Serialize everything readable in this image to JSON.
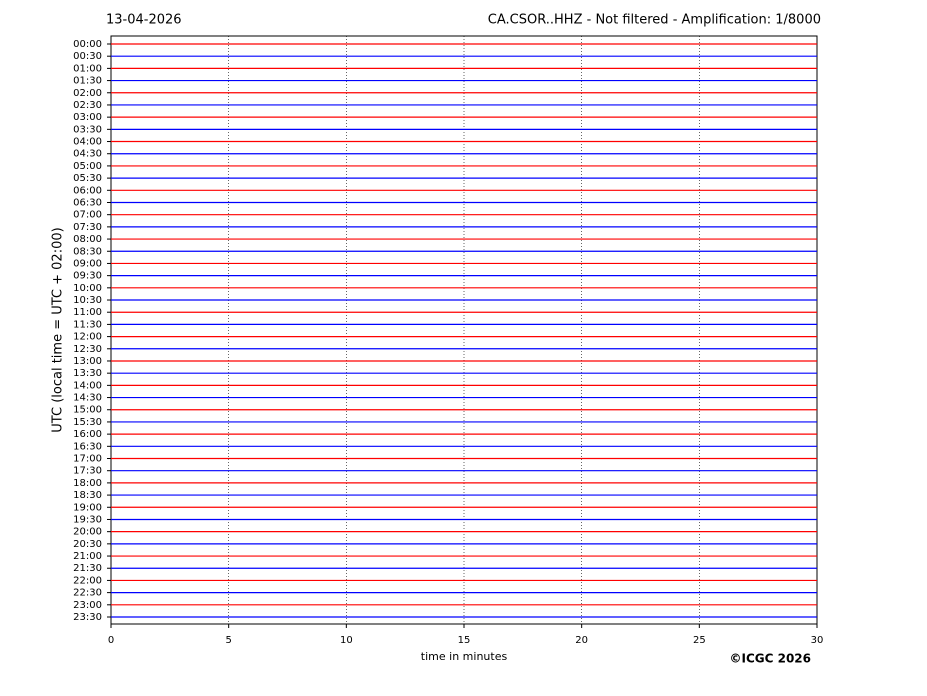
{
  "chart_data": {
    "type": "helicorder",
    "title": "CA.CSOR..HHZ - Not filtered - Amplification: 1/8000",
    "date": "13-04-2026",
    "x_label": "time in minutes",
    "y_label": "UTC (local time = UTC + 02:00)",
    "credit": "©ICGC 2026",
    "categories": [
      "00:00",
      "00:30",
      "01:00",
      "01:30",
      "02:00",
      "02:30",
      "03:00",
      "03:30",
      "04:00",
      "04:30",
      "05:00",
      "05:30",
      "06:00",
      "06:30",
      "07:00",
      "07:30",
      "08:00",
      "08:30",
      "09:00",
      "09:30",
      "10:00",
      "10:30",
      "11:00",
      "11:30",
      "12:00",
      "12:30",
      "13:00",
      "13:30",
      "14:00",
      "14:30",
      "15:00",
      "15:30",
      "16:00",
      "16:30",
      "17:00",
      "17:30",
      "18:00",
      "18:30",
      "19:00",
      "19:30",
      "20:00",
      "20:30",
      "21:00",
      "21:30",
      "22:00",
      "22:30",
      "23:00",
      "23:30"
    ],
    "colors": [
      "#ff0000",
      "#0000ff"
    ],
    "xlim": [
      0,
      30
    ],
    "xticks": [
      0,
      5,
      10,
      15,
      20,
      25,
      30
    ],
    "grid": true
  }
}
